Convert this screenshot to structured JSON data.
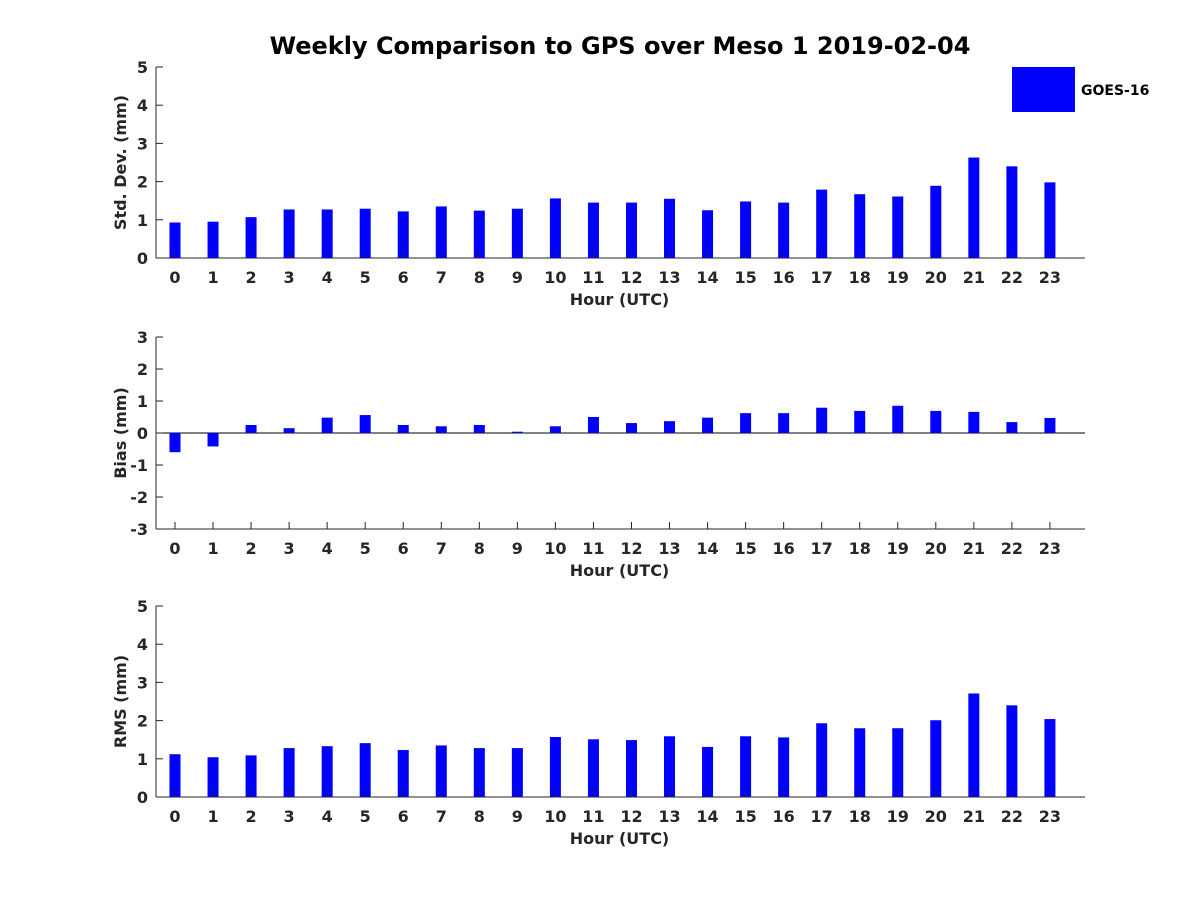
{
  "figure": {
    "title": "Weekly Comparison to GPS over Meso 1 2019-02-04",
    "bar_color": "#0000ff",
    "legend": {
      "label": "GOES-16",
      "position": "top-right"
    }
  },
  "chart_data": [
    {
      "type": "bar",
      "title": "Weekly Comparison to GPS over Meso 1 2019-02-04",
      "xlabel": "Hour (UTC)",
      "ylabel": "Std. Dev. (mm)",
      "ylim": [
        0,
        5
      ],
      "yticks": [
        0,
        1,
        2,
        3,
        4,
        5
      ],
      "categories": [
        "0",
        "1",
        "2",
        "3",
        "4",
        "5",
        "6",
        "7",
        "8",
        "9",
        "10",
        "11",
        "12",
        "13",
        "14",
        "15",
        "16",
        "17",
        "18",
        "19",
        "20",
        "21",
        "22",
        "23"
      ],
      "series": [
        {
          "name": "GOES-16",
          "values": [
            0.93,
            0.95,
            1.07,
            1.27,
            1.27,
            1.29,
            1.22,
            1.35,
            1.24,
            1.29,
            1.56,
            1.45,
            1.45,
            1.55,
            1.25,
            1.48,
            1.45,
            1.79,
            1.67,
            1.61,
            1.89,
            2.63,
            2.4,
            1.98
          ]
        }
      ]
    },
    {
      "type": "bar",
      "title": "",
      "xlabel": "Hour (UTC)",
      "ylabel": "Bias (mm)",
      "ylim": [
        -3,
        3
      ],
      "yticks": [
        -3,
        -2,
        -1,
        0,
        1,
        2,
        3
      ],
      "categories": [
        "0",
        "1",
        "2",
        "3",
        "4",
        "5",
        "6",
        "7",
        "8",
        "9",
        "10",
        "11",
        "12",
        "13",
        "14",
        "15",
        "16",
        "17",
        "18",
        "19",
        "20",
        "21",
        "22",
        "23"
      ],
      "series": [
        {
          "name": "GOES-16",
          "values": [
            -0.6,
            -0.42,
            0.25,
            0.15,
            0.48,
            0.56,
            0.25,
            0.21,
            0.25,
            0.04,
            0.21,
            0.5,
            0.31,
            0.37,
            0.48,
            0.62,
            0.62,
            0.79,
            0.69,
            0.85,
            0.69,
            0.66,
            0.34,
            0.47
          ]
        }
      ]
    },
    {
      "type": "bar",
      "title": "",
      "xlabel": "Hour (UTC)",
      "ylabel": "RMS (mm)",
      "ylim": [
        0,
        5
      ],
      "yticks": [
        0,
        1,
        2,
        3,
        4,
        5
      ],
      "categories": [
        "0",
        "1",
        "2",
        "3",
        "4",
        "5",
        "6",
        "7",
        "8",
        "9",
        "10",
        "11",
        "12",
        "13",
        "14",
        "15",
        "16",
        "17",
        "18",
        "19",
        "20",
        "21",
        "22",
        "23"
      ],
      "series": [
        {
          "name": "GOES-16",
          "values": [
            1.12,
            1.04,
            1.09,
            1.28,
            1.33,
            1.41,
            1.23,
            1.35,
            1.28,
            1.28,
            1.57,
            1.51,
            1.49,
            1.59,
            1.31,
            1.59,
            1.56,
            1.93,
            1.8,
            1.8,
            2.01,
            2.71,
            2.4,
            2.04
          ]
        }
      ]
    }
  ]
}
